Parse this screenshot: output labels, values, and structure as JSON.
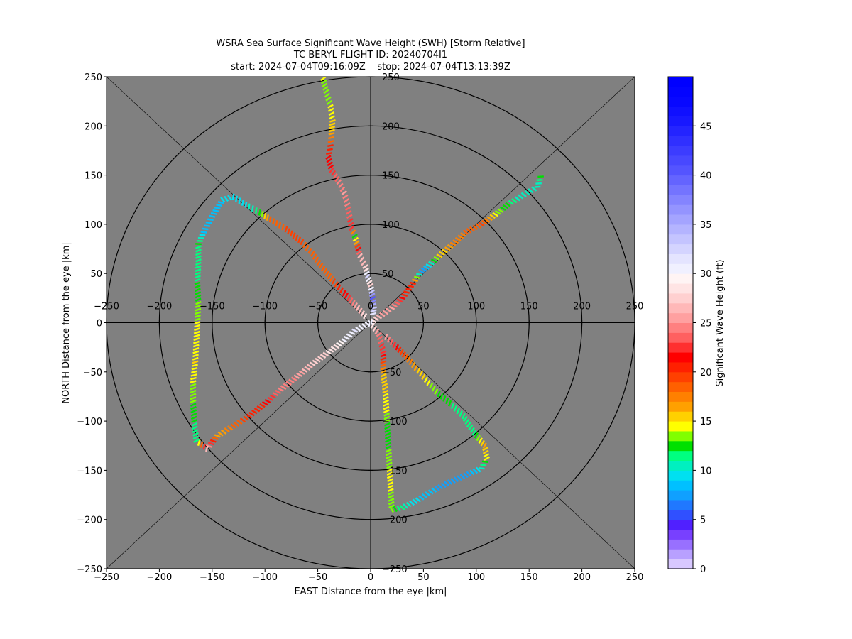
{
  "chart_data": {
    "type": "scatter",
    "title_lines": [
      "WSRA Sea Surface Significant Wave Height (SWH) [Storm Relative]",
      "TC BERYL FLIGHT ID: 20240704I1",
      "start: 2024-07-04T09:16:09Z    stop: 2024-07-04T13:13:39Z"
    ],
    "xlabel": "EAST Distance from the eye |km|",
    "ylabel": "NORTH Distance from the eye |km|",
    "xlim": [
      -250,
      250
    ],
    "ylim": [
      -250,
      250
    ],
    "x_ticks": [
      "−250",
      "−200",
      "−150",
      "−100",
      "−50",
      "0",
      "50",
      "100",
      "150",
      "200",
      "250"
    ],
    "y_ticks": [
      "−250",
      "−200",
      "−150",
      "−100",
      "−50",
      "0",
      "50",
      "100",
      "150",
      "200",
      "250"
    ],
    "inner_x_ticks": [
      "−250",
      "−200",
      "−150",
      "−100",
      "−50",
      "0",
      "50",
      "100",
      "150",
      "200",
      "250"
    ],
    "inner_y_ticks": [
      "−250",
      "−200",
      "−150",
      "−100",
      "−50",
      "50",
      "100",
      "150",
      "200",
      "250"
    ],
    "range_rings_km": [
      50,
      100,
      150,
      200,
      250
    ],
    "background_color": "#808080",
    "colorbar": {
      "label": "Significant Wave Height (ft)",
      "range": [
        0,
        50
      ],
      "tick_labels": [
        "0",
        "5",
        "10",
        "15",
        "20",
        "25",
        "30",
        "35",
        "40",
        "45"
      ],
      "colors": [
        "#d8c8ff",
        "#b8a0ff",
        "#9870ff",
        "#7840ff",
        "#5020ff",
        "#3050ff",
        "#2078ff",
        "#10a0ff",
        "#00c0ff",
        "#00e0f0",
        "#00f0c0",
        "#00ff80",
        "#00e000",
        "#80ff00",
        "#ffff00",
        "#ffd000",
        "#ffa000",
        "#ff8000",
        "#ff6000",
        "#ff4000",
        "#ff2000",
        "#ff0000",
        "#ff3030",
        "#ff6060",
        "#ff8080",
        "#ffa0a0",
        "#ffb8b8",
        "#ffd0d0",
        "#ffe4e4",
        "#fff4f4",
        "#f0f0ff",
        "#e4e4ff",
        "#d4d4ff",
        "#c4c4ff",
        "#b4b4ff",
        "#a4a4ff",
        "#9494ff",
        "#8484ff",
        "#7474ff",
        "#6464ff",
        "#5454ff",
        "#4848ff",
        "#3c3cff",
        "#3030ff",
        "#2424ff",
        "#1818ff",
        "#1010ff",
        "#0808ff",
        "#0404ff",
        "#0000ff"
      ]
    },
    "series": [
      {
        "points": [
          [
            -45,
            248,
            14
          ],
          [
            -42,
            235,
            13
          ],
          [
            -38,
            220,
            14
          ],
          [
            -36,
            205,
            15
          ],
          [
            -37,
            192,
            16
          ],
          [
            -38,
            180,
            20
          ],
          [
            -40,
            168,
            21
          ],
          [
            -37,
            155,
            22
          ],
          [
            -30,
            143,
            24
          ],
          [
            -25,
            132,
            25
          ],
          [
            -22,
            120,
            24
          ],
          [
            -20,
            108,
            23
          ],
          [
            -18,
            96,
            22
          ],
          [
            -15,
            88,
            12
          ],
          [
            -10,
            68,
            26
          ],
          [
            -5,
            57,
            27
          ],
          [
            -3,
            47,
            32
          ],
          [
            0,
            38,
            27
          ],
          [
            2,
            25,
            40
          ],
          [
            3,
            15,
            33
          ],
          [
            2,
            6,
            30
          ]
        ]
      },
      {
        "points": [
          [
            0,
            0,
            30
          ],
          [
            8,
            6,
            26
          ],
          [
            20,
            15,
            25
          ],
          [
            30,
            25,
            21
          ],
          [
            40,
            40,
            20
          ],
          [
            48,
            52,
            7
          ],
          [
            55,
            58,
            9
          ],
          [
            65,
            68,
            15
          ],
          [
            78,
            80,
            17
          ],
          [
            90,
            92,
            18
          ],
          [
            105,
            100,
            19
          ],
          [
            118,
            110,
            14
          ],
          [
            130,
            120,
            12
          ],
          [
            145,
            130,
            10
          ],
          [
            158,
            138,
            10
          ],
          [
            162,
            152,
            13
          ]
        ]
      },
      {
        "points": [
          [
            0,
            0,
            30
          ],
          [
            -15,
            -8,
            31
          ],
          [
            -25,
            -18,
            30
          ],
          [
            -40,
            -30,
            28
          ],
          [
            -55,
            -42,
            27
          ],
          [
            -70,
            -55,
            25
          ],
          [
            -85,
            -68,
            24
          ],
          [
            -100,
            -82,
            21
          ],
          [
            -115,
            -95,
            20
          ],
          [
            -130,
            -105,
            18
          ],
          [
            -145,
            -115,
            16
          ],
          [
            -155,
            -128,
            26
          ],
          [
            -165,
            -120,
            11
          ],
          [
            -167,
            -100,
            12
          ],
          [
            -168,
            -80,
            13
          ],
          [
            -168,
            -60,
            14
          ],
          [
            -166,
            -40,
            15
          ],
          [
            -165,
            -20,
            14
          ],
          [
            -164,
            0,
            14
          ],
          [
            -163,
            20,
            13
          ],
          [
            -164,
            40,
            12
          ],
          [
            -163,
            60,
            11
          ],
          [
            -163,
            80,
            12
          ],
          [
            -158,
            92,
            8
          ],
          [
            -150,
            108,
            8
          ],
          [
            -140,
            125,
            9
          ],
          [
            -130,
            128,
            9
          ],
          [
            -115,
            118,
            10
          ],
          [
            -105,
            112,
            12
          ],
          [
            -95,
            105,
            18
          ],
          [
            -80,
            95,
            19
          ],
          [
            -65,
            82,
            19
          ],
          [
            -55,
            70,
            18
          ],
          [
            -45,
            55,
            18
          ],
          [
            -35,
            42,
            19
          ],
          [
            -25,
            30,
            21
          ],
          [
            -12,
            15,
            26
          ],
          [
            -3,
            4,
            29
          ]
        ]
      },
      {
        "points": [
          [
            0,
            0,
            30
          ],
          [
            8,
            -12,
            24
          ],
          [
            12,
            -30,
            22
          ],
          [
            12,
            -50,
            16
          ],
          [
            14,
            -70,
            15
          ],
          [
            15,
            -90,
            14
          ],
          [
            16,
            -110,
            12
          ],
          [
            17,
            -130,
            13
          ],
          [
            18,
            -150,
            14
          ],
          [
            19,
            -170,
            14
          ],
          [
            20,
            -190,
            13
          ],
          [
            30,
            -188,
            11
          ],
          [
            45,
            -180,
            9
          ],
          [
            60,
            -170,
            8
          ],
          [
            75,
            -162,
            7
          ],
          [
            90,
            -155,
            7
          ],
          [
            105,
            -148,
            10
          ],
          [
            110,
            -138,
            14
          ],
          [
            108,
            -125,
            16
          ],
          [
            98,
            -112,
            11
          ],
          [
            88,
            -95,
            11
          ],
          [
            75,
            -82,
            12
          ],
          [
            62,
            -70,
            13
          ],
          [
            50,
            -55,
            15
          ],
          [
            38,
            -40,
            17
          ],
          [
            25,
            -25,
            21
          ],
          [
            12,
            -12,
            26
          ]
        ]
      }
    ]
  }
}
